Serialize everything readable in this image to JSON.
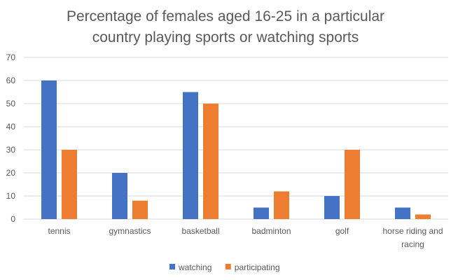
{
  "chart_data": {
    "type": "bar",
    "title": [
      "Percentage of females aged 16-25 in a particular",
      "country playing sports or watching sports"
    ],
    "categories": [
      [
        "tennis"
      ],
      [
        "gymnastics"
      ],
      [
        "basketball"
      ],
      [
        "badminton"
      ],
      [
        "golf"
      ],
      [
        "horse riding and",
        "racing"
      ]
    ],
    "series": [
      {
        "name": "watching",
        "color": "#4472C4",
        "values": [
          60,
          20,
          55,
          5,
          10,
          5
        ]
      },
      {
        "name": "participating",
        "color": "#ED7D31",
        "values": [
          30,
          8,
          50,
          12,
          30,
          2
        ]
      }
    ],
    "xlabel": "",
    "ylabel": "",
    "ylim": [
      0,
      70
    ],
    "yticks": [
      0,
      10,
      20,
      30,
      40,
      50,
      60,
      70
    ],
    "grid": true,
    "legend": "bottom"
  }
}
